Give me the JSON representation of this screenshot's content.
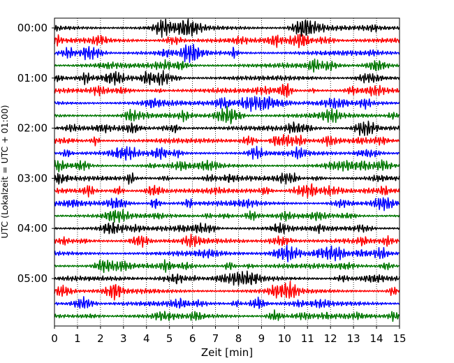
{
  "chart_data": {
    "type": "line",
    "title": "",
    "xlabel": "Zeit  [min]",
    "ylabel": "UTC (Lokalzeit = UTC + 01:00)",
    "xlim": [
      0,
      15
    ],
    "x_ticks": [
      0,
      1,
      2,
      3,
      4,
      5,
      6,
      7,
      8,
      9,
      10,
      11,
      12,
      13,
      14,
      15
    ],
    "x_tick_labels": [
      "0",
      "1",
      "2",
      "3",
      "4",
      "5",
      "6",
      "7",
      "8",
      "9",
      "10",
      "11",
      "12",
      "13",
      "14",
      "15"
    ],
    "y_tick_labels": [
      "00:00",
      "01:00",
      "02:00",
      "03:00",
      "04:00",
      "05:00"
    ],
    "y_tick_rows": [
      0,
      4,
      8,
      12,
      16,
      20
    ],
    "trace_count": 24,
    "minutes_per_trace": 15,
    "trace_colors": [
      "#000000",
      "#ff0000",
      "#0000ff",
      "#007700"
    ],
    "grid_x": true,
    "grid_style": "dotted"
  }
}
